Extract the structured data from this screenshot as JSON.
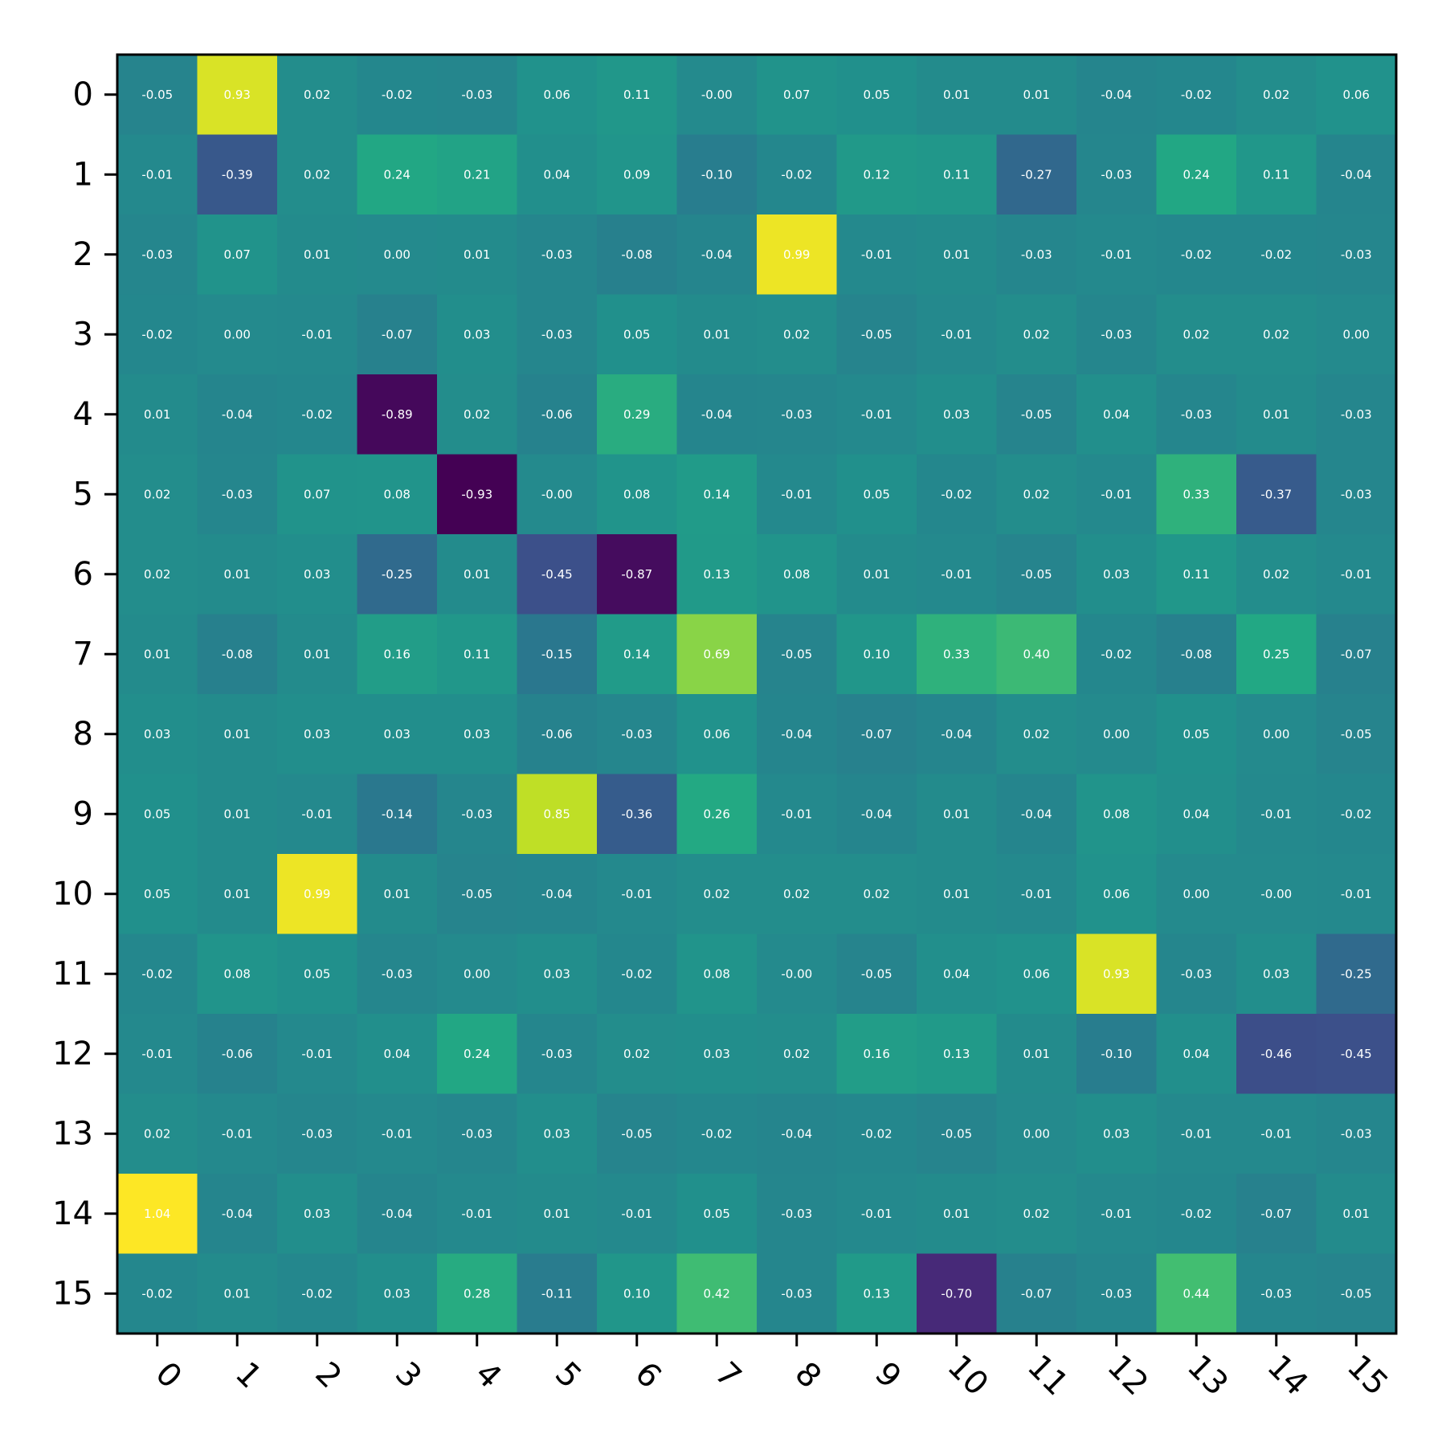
{
  "chart_data": {
    "type": "heatmap",
    "title": "",
    "xlabel": "",
    "ylabel": "",
    "x_tick_labels": [
      "0",
      "1",
      "2",
      "3",
      "4",
      "5",
      "6",
      "7",
      "8",
      "9",
      "10",
      "11",
      "12",
      "13",
      "14",
      "15"
    ],
    "y_tick_labels": [
      "0",
      "1",
      "2",
      "3",
      "4",
      "5",
      "6",
      "7",
      "8",
      "9",
      "10",
      "11",
      "12",
      "13",
      "14",
      "15"
    ],
    "colormap": "viridis",
    "color_range": [
      -0.93,
      1.04
    ],
    "cell_text_color": "#ffffff",
    "x_tick_rotation_deg": 45,
    "annotated": true,
    "values": [
      [
        -0.05,
        0.93,
        0.02,
        -0.02,
        -0.03,
        0.06,
        0.11,
        -0.0,
        0.07,
        0.05,
        0.01,
        0.01,
        -0.04,
        -0.02,
        0.02,
        0.06
      ],
      [
        -0.01,
        -0.39,
        0.02,
        0.24,
        0.21,
        0.04,
        0.09,
        -0.1,
        -0.02,
        0.12,
        0.11,
        -0.27,
        -0.03,
        0.24,
        0.11,
        -0.04
      ],
      [
        -0.03,
        0.07,
        0.01,
        0.0,
        0.01,
        -0.03,
        -0.08,
        -0.04,
        0.99,
        -0.01,
        0.01,
        -0.03,
        -0.01,
        -0.02,
        -0.02,
        -0.03
      ],
      [
        -0.02,
        0.0,
        -0.01,
        -0.07,
        0.03,
        -0.03,
        0.05,
        0.01,
        0.02,
        -0.05,
        -0.01,
        0.02,
        -0.03,
        0.02,
        0.02,
        0.0
      ],
      [
        0.01,
        -0.04,
        -0.02,
        -0.89,
        0.02,
        -0.06,
        0.29,
        -0.04,
        -0.03,
        -0.01,
        0.03,
        -0.05,
        0.04,
        -0.03,
        0.01,
        -0.03
      ],
      [
        0.02,
        -0.03,
        0.07,
        0.08,
        -0.93,
        -0.0,
        0.08,
        0.14,
        -0.01,
        0.05,
        -0.02,
        0.02,
        -0.01,
        0.33,
        -0.37,
        -0.03
      ],
      [
        0.02,
        0.01,
        0.03,
        -0.25,
        0.01,
        -0.45,
        -0.87,
        0.13,
        0.08,
        0.01,
        -0.01,
        -0.05,
        0.03,
        0.11,
        0.02,
        -0.01
      ],
      [
        0.01,
        -0.08,
        0.01,
        0.16,
        0.11,
        -0.15,
        0.14,
        0.69,
        -0.05,
        0.1,
        0.33,
        0.4,
        -0.02,
        -0.08,
        0.25,
        -0.07
      ],
      [
        0.03,
        0.01,
        0.03,
        0.03,
        0.03,
        -0.06,
        -0.03,
        0.06,
        -0.04,
        -0.07,
        -0.04,
        0.02,
        0.0,
        0.05,
        0.0,
        -0.05
      ],
      [
        0.05,
        0.01,
        -0.01,
        -0.14,
        -0.03,
        0.85,
        -0.36,
        0.26,
        -0.01,
        -0.04,
        0.01,
        -0.04,
        0.08,
        0.04,
        -0.01,
        -0.02
      ],
      [
        0.05,
        0.01,
        0.99,
        0.01,
        -0.05,
        -0.04,
        -0.01,
        0.02,
        0.02,
        0.02,
        0.01,
        -0.01,
        0.06,
        0.0,
        -0.0,
        -0.01
      ],
      [
        -0.02,
        0.08,
        0.05,
        -0.03,
        0.0,
        0.03,
        -0.02,
        0.08,
        -0.0,
        -0.05,
        0.04,
        0.06,
        0.93,
        -0.03,
        0.03,
        -0.25
      ],
      [
        -0.01,
        -0.06,
        -0.01,
        0.04,
        0.24,
        -0.03,
        0.02,
        0.03,
        0.02,
        0.16,
        0.13,
        0.01,
        -0.1,
        0.04,
        -0.46,
        -0.45
      ],
      [
        0.02,
        -0.01,
        -0.03,
        -0.01,
        -0.03,
        0.03,
        -0.05,
        -0.02,
        -0.04,
        -0.02,
        -0.05,
        0.0,
        0.03,
        -0.01,
        -0.01,
        -0.03
      ],
      [
        1.04,
        -0.04,
        0.03,
        -0.04,
        -0.01,
        0.01,
        -0.01,
        0.05,
        -0.03,
        -0.01,
        0.01,
        0.02,
        -0.01,
        -0.02,
        -0.07,
        0.01
      ],
      [
        -0.02,
        0.01,
        -0.02,
        0.03,
        0.28,
        -0.11,
        0.1,
        0.42,
        -0.03,
        0.13,
        -0.7,
        -0.07,
        -0.03,
        0.44,
        -0.03,
        -0.05
      ]
    ],
    "cell_labels": [
      [
        "-0.05",
        "0.93",
        "0.02",
        "-0.02",
        "-0.03",
        "0.06",
        "0.11",
        "-0.00",
        "0.07",
        "0.05",
        "0.01",
        "0.01",
        "-0.04",
        "-0.02",
        "0.02",
        "0.06"
      ],
      [
        "-0.01",
        "-0.39",
        "0.02",
        "0.24",
        "0.21",
        "0.04",
        "0.09",
        "-0.10",
        "-0.02",
        "0.12",
        "0.11",
        "-0.27",
        "-0.03",
        "0.24",
        "0.11",
        "-0.04"
      ],
      [
        "-0.03",
        "0.07",
        "0.01",
        "0.00",
        "0.01",
        "-0.03",
        "-0.08",
        "-0.04",
        "0.99",
        "-0.01",
        "0.01",
        "-0.03",
        "-0.01",
        "-0.02",
        "-0.02",
        "-0.03"
      ],
      [
        "-0.02",
        "0.00",
        "-0.01",
        "-0.07",
        "0.03",
        "-0.03",
        "0.05",
        "0.01",
        "0.02",
        "-0.05",
        "-0.01",
        "0.02",
        "-0.03",
        "0.02",
        "0.02",
        "0.00"
      ],
      [
        "0.01",
        "-0.04",
        "-0.02",
        "-0.89",
        "0.02",
        "-0.06",
        "0.29",
        "-0.04",
        "-0.03",
        "-0.01",
        "0.03",
        "-0.05",
        "0.04",
        "-0.03",
        "0.01",
        "-0.03"
      ],
      [
        "0.02",
        "-0.03",
        "0.07",
        "0.08",
        "-0.93",
        "-0.00",
        "0.08",
        "0.14",
        "-0.01",
        "0.05",
        "-0.02",
        "0.02",
        "-0.01",
        "0.33",
        "-0.37",
        "-0.03"
      ],
      [
        "0.02",
        "0.01",
        "0.03",
        "-0.25",
        "0.01",
        "-0.45",
        "-0.87",
        "0.13",
        "0.08",
        "0.01",
        "-0.01",
        "-0.05",
        "0.03",
        "0.11",
        "0.02",
        "-0.01"
      ],
      [
        "0.01",
        "-0.08",
        "0.01",
        "0.16",
        "0.11",
        "-0.15",
        "0.14",
        "0.69",
        "-0.05",
        "0.10",
        "0.33",
        "0.40",
        "-0.02",
        "-0.08",
        "0.25",
        "-0.07"
      ],
      [
        "0.03",
        "0.01",
        "0.03",
        "0.03",
        "0.03",
        "-0.06",
        "-0.03",
        "0.06",
        "-0.04",
        "-0.07",
        "-0.04",
        "0.02",
        "0.00",
        "0.05",
        "0.00",
        "-0.05"
      ],
      [
        "0.05",
        "0.01",
        "-0.01",
        "-0.14",
        "-0.03",
        "0.85",
        "-0.36",
        "0.26",
        "-0.01",
        "-0.04",
        "0.01",
        "-0.04",
        "0.08",
        "0.04",
        "-0.01",
        "-0.02"
      ],
      [
        "0.05",
        "0.01",
        "0.99",
        "0.01",
        "-0.05",
        "-0.04",
        "-0.01",
        "0.02",
        "0.02",
        "0.02",
        "0.01",
        "-0.01",
        "0.06",
        "0.00",
        "-0.00",
        "-0.01"
      ],
      [
        "-0.02",
        "0.08",
        "0.05",
        "-0.03",
        "0.00",
        "0.03",
        "-0.02",
        "0.08",
        "-0.00",
        "-0.05",
        "0.04",
        "0.06",
        "0.93",
        "-0.03",
        "0.03",
        "-0.25"
      ],
      [
        "-0.01",
        "-0.06",
        "-0.01",
        "0.04",
        "0.24",
        "-0.03",
        "0.02",
        "0.03",
        "0.02",
        "0.16",
        "0.13",
        "0.01",
        "-0.10",
        "0.04",
        "-0.46",
        "-0.45"
      ],
      [
        "0.02",
        "-0.01",
        "-0.03",
        "-0.01",
        "-0.03",
        "0.03",
        "-0.05",
        "-0.02",
        "-0.04",
        "-0.02",
        "-0.05",
        "0.00",
        "0.03",
        "-0.01",
        "-0.01",
        "-0.03"
      ],
      [
        "1.04",
        "-0.04",
        "0.03",
        "-0.04",
        "-0.01",
        "0.01",
        "-0.01",
        "0.05",
        "-0.03",
        "-0.01",
        "0.01",
        "0.02",
        "-0.01",
        "-0.02",
        "-0.07",
        "0.01"
      ],
      [
        "-0.02",
        "0.01",
        "-0.02",
        "0.03",
        "0.28",
        "-0.11",
        "0.10",
        "0.42",
        "-0.03",
        "0.13",
        "-0.70",
        "-0.07",
        "-0.03",
        "0.44",
        "-0.03",
        "-0.05"
      ]
    ]
  }
}
